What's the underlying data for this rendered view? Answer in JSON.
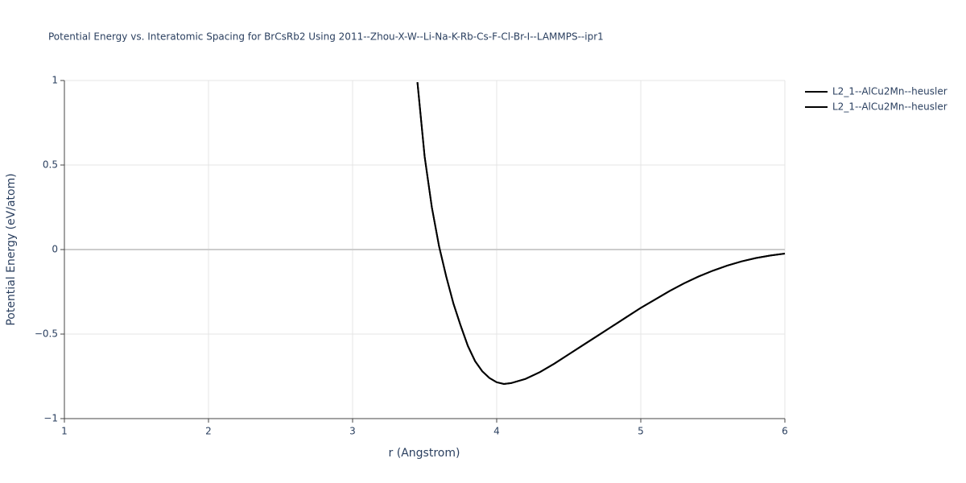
{
  "chart_data": {
    "type": "line",
    "title": "Potential Energy vs. Interatomic Spacing for BrCsRb2 Using 2011--Zhou-X-W--Li-Na-K-Rb-Cs-F-Cl-Br-I--LAMMPS--ipr1",
    "x_label": "r (Angstrom)",
    "y_label": "Potential Energy (eV/atom)",
    "x": [
      3.45,
      3.5,
      3.55,
      3.6,
      3.65,
      3.7,
      3.75,
      3.8,
      3.85,
      3.9,
      3.95,
      4.0,
      4.05,
      4.1,
      4.2,
      4.3,
      4.4,
      4.5,
      4.6,
      4.7,
      4.8,
      4.9,
      5.0,
      5.1,
      5.2,
      5.3,
      5.4,
      5.5,
      5.6,
      5.7,
      5.8,
      5.9,
      6.0
    ],
    "series": [
      {
        "name": "L2_1--AlCu2Mn--heusler",
        "color": "#000000",
        "values": [
          0.99,
          0.55,
          0.25,
          0.02,
          -0.16,
          -0.32,
          -0.45,
          -0.57,
          -0.66,
          -0.72,
          -0.76,
          -0.785,
          -0.795,
          -0.79,
          -0.765,
          -0.725,
          -0.675,
          -0.62,
          -0.565,
          -0.51,
          -0.455,
          -0.4,
          -0.345,
          -0.295,
          -0.245,
          -0.2,
          -0.16,
          -0.125,
          -0.095,
          -0.07,
          -0.05,
          -0.035,
          -0.024
        ]
      },
      {
        "name": "L2_1--AlCu2Mn--heusler",
        "color": "#000000",
        "values": [
          0.99,
          0.55,
          0.25,
          0.02,
          -0.16,
          -0.32,
          -0.45,
          -0.57,
          -0.66,
          -0.72,
          -0.76,
          -0.785,
          -0.795,
          -0.79,
          -0.765,
          -0.725,
          -0.675,
          -0.62,
          -0.565,
          -0.51,
          -0.455,
          -0.4,
          -0.345,
          -0.295,
          -0.245,
          -0.2,
          -0.16,
          -0.125,
          -0.095,
          -0.07,
          -0.05,
          -0.035,
          -0.024
        ]
      }
    ],
    "xlim": [
      1,
      6
    ],
    "xticks": [
      1,
      2,
      3,
      4,
      5,
      6
    ],
    "ylim": [
      -1,
      1
    ],
    "yticks": [
      {
        "value": -1,
        "label": "−1"
      },
      {
        "value": -0.5,
        "label": "−0.5"
      },
      0,
      0.5,
      1
    ],
    "grid": true
  }
}
